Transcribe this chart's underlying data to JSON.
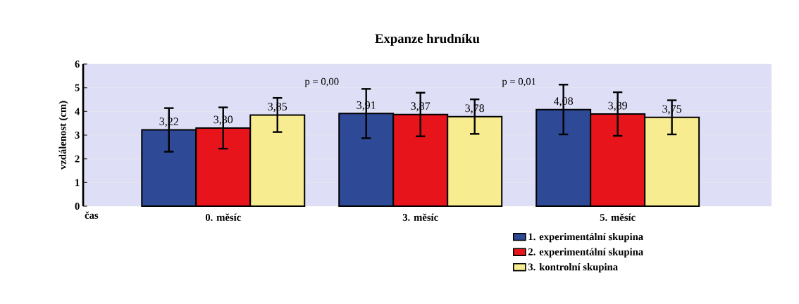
{
  "chart_data": {
    "type": "bar",
    "title": "Expanze hrudníku",
    "xlabel": "čas",
    "ylabel": "vzdálenost (cm)",
    "categories": [
      "0. měsíc",
      "3. měsíc",
      "5. měsíc"
    ],
    "series": [
      {
        "name": "1. experimentální skupina",
        "color": "#2e4a96",
        "values": [
          3.22,
          3.91,
          4.08
        ],
        "errors": [
          0.92,
          1.04,
          1.05
        ],
        "value_labels": [
          "3,22",
          "3,91",
          "4,08"
        ]
      },
      {
        "name": "2. experimentální skupina",
        "color": "#e8141b",
        "values": [
          3.3,
          3.87,
          3.89
        ],
        "errors": [
          0.87,
          0.92,
          0.92
        ],
        "value_labels": [
          "3,30",
          "3,87",
          "3,89"
        ]
      },
      {
        "name": "3. kontrolní skupina",
        "color": "#f7ec90",
        "values": [
          3.85,
          3.78,
          3.75
        ],
        "errors": [
          0.72,
          0.73,
          0.72
        ],
        "value_labels": [
          "3,85",
          "3,78",
          "3,75"
        ]
      }
    ],
    "ylim": [
      0,
      6
    ],
    "yticks": [
      0,
      1,
      2,
      3,
      4,
      5,
      6
    ],
    "grid": "y",
    "legend": "bottom right",
    "annotations": [
      "p = 0,00",
      "p = 0,01"
    ]
  }
}
